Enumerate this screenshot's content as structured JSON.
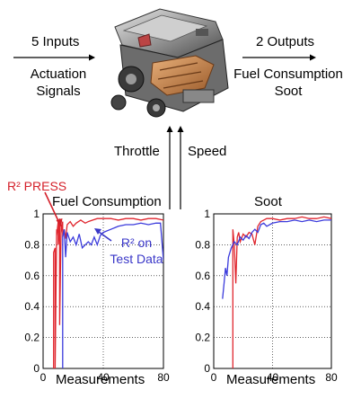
{
  "top": {
    "inputs_label": "5 Inputs",
    "inputs_sub1": "Actuation",
    "inputs_sub2": "Signals",
    "outputs_label": "2 Outputs",
    "outputs_sub1": "Fuel Consumption",
    "outputs_sub2": "Soot",
    "throttle": "Throttle",
    "speed": "Speed"
  },
  "annotations": {
    "press_label": "R² PRESS",
    "test_label_line1": "R² on",
    "test_label_line2": "Test Data"
  },
  "colors": {
    "press": "#e0262e",
    "test": "#3b3bdc",
    "annotation_red": "#d4202a",
    "annotation_blue": "#3a37c8"
  },
  "chart_data": [
    {
      "type": "line",
      "title": "Fuel Consumption",
      "xlabel": "Measurements",
      "ylabel": "",
      "xlim": [
        0,
        80
      ],
      "ylim": [
        0,
        1
      ],
      "xticks": [
        "0",
        "40",
        "80"
      ],
      "yticks": [
        "0",
        "0.2",
        "0.4",
        "0.6",
        "0.8",
        "1"
      ],
      "series": [
        {
          "name": "R² PRESS",
          "color": "#e0262e",
          "x": [
            7,
            7,
            8,
            8,
            9,
            9,
            10,
            10,
            11,
            11,
            12,
            12,
            13,
            13,
            14,
            15,
            16,
            18,
            20,
            22,
            25,
            28,
            30,
            33,
            36,
            40,
            45,
            50,
            55,
            60,
            65,
            70,
            75,
            80
          ],
          "y": [
            0,
            0.75,
            0.78,
            0,
            0.9,
            0.86,
            0.95,
            0.8,
            0.97,
            0.28,
            0.93,
            0.88,
            0.95,
            0.85,
            0.9,
            0.84,
            0.93,
            0.95,
            0.92,
            0.94,
            0.96,
            0.94,
            0.95,
            0.96,
            0.97,
            0.97,
            0.97,
            0.96,
            0.97,
            0.97,
            0.96,
            0.97,
            0.97,
            0.96
          ]
        },
        {
          "name": "R² on Test Data",
          "color": "#3b3bdc",
          "x": [
            13,
            13,
            14,
            15,
            16,
            18,
            20,
            22,
            24,
            26,
            28,
            30,
            32,
            34,
            36,
            38,
            40,
            45,
            50,
            55,
            60,
            65,
            70,
            75,
            78,
            80
          ],
          "y": [
            0,
            0.85,
            0.9,
            0.72,
            0.88,
            0.82,
            0.85,
            0.8,
            0.87,
            0.78,
            0.8,
            0.82,
            0.8,
            0.85,
            0.8,
            0.86,
            0.88,
            0.9,
            0.92,
            0.93,
            0.93,
            0.94,
            0.93,
            0.94,
            0.94,
            0.7
          ]
        }
      ]
    },
    {
      "type": "line",
      "title": "Soot",
      "xlabel": "Measurements",
      "ylabel": "",
      "xlim": [
        0,
        80
      ],
      "ylim": [
        0,
        1
      ],
      "xticks": [
        "0",
        "40",
        "80"
      ],
      "yticks": [
        "0",
        "0.2",
        "0.4",
        "0.6",
        "0.8",
        "1"
      ],
      "series": [
        {
          "name": "R² PRESS",
          "color": "#e0262e",
          "x": [
            13,
            13,
            14,
            15,
            16,
            17,
            18,
            20,
            22,
            24,
            26,
            28,
            30,
            32,
            34,
            36,
            40,
            45,
            50,
            55,
            60,
            65,
            70,
            75,
            80
          ],
          "y": [
            0,
            0.9,
            0.8,
            0.55,
            0.85,
            0.88,
            0.82,
            0.87,
            0.85,
            0.88,
            0.87,
            0.8,
            0.92,
            0.95,
            0.96,
            0.97,
            0.97,
            0.96,
            0.97,
            0.97,
            0.98,
            0.97,
            0.97,
            0.98,
            0.97
          ]
        },
        {
          "name": "R² on Test Data",
          "color": "#3b3bdc",
          "x": [
            6,
            7,
            8,
            9,
            10,
            12,
            14,
            16,
            18,
            20,
            22,
            24,
            26,
            28,
            30,
            32,
            34,
            36,
            40,
            45,
            50,
            55,
            60,
            65,
            70,
            75,
            80
          ],
          "y": [
            0.45,
            0.55,
            0.65,
            0.6,
            0.72,
            0.78,
            0.82,
            0.8,
            0.85,
            0.83,
            0.86,
            0.84,
            0.88,
            0.9,
            0.88,
            0.93,
            0.94,
            0.92,
            0.94,
            0.95,
            0.95,
            0.96,
            0.95,
            0.96,
            0.95,
            0.96,
            0.96
          ]
        }
      ]
    }
  ]
}
